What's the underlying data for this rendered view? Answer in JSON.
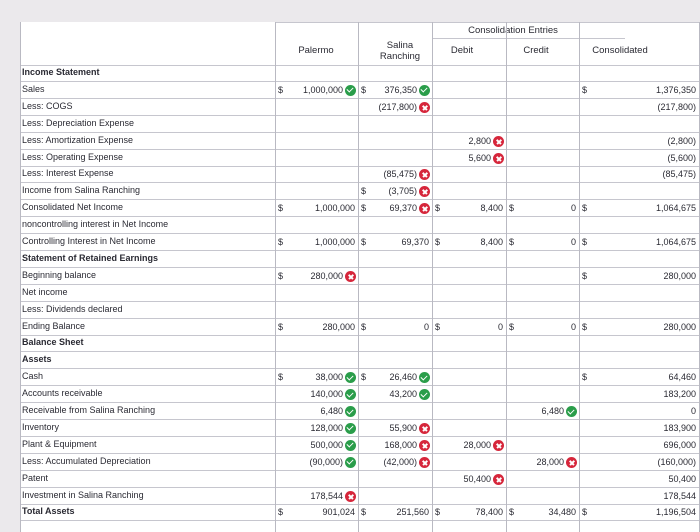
{
  "header": {
    "group": "Consolidation Entries",
    "palermo": "Palermo",
    "salina_line1": "Salina",
    "salina_line2": "Ranching",
    "debit": "Debit",
    "credit": "Credit",
    "consolidated": "Consolidated"
  },
  "rows": [
    {
      "label": "Income Statement",
      "bold": true
    },
    {
      "label": "Sales",
      "cells": {
        "pal": {
          "d": "$",
          "v": "1,000,000",
          "icon": "ok"
        },
        "sal": {
          "d": "$",
          "v": "376,350",
          "icon": "ok"
        },
        "con": {
          "d": "$",
          "v": "1,376,350"
        }
      }
    },
    {
      "label": "Less: COGS",
      "cells": {
        "sal": {
          "v": "(217,800)",
          "icon": "err"
        },
        "con": {
          "v": "(217,800)"
        }
      }
    },
    {
      "label": "Less: Depreciation Expense"
    },
    {
      "label": "Less: Amortization Expense",
      "cells": {
        "deb": {
          "v": "2,800",
          "icon": "err"
        },
        "con": {
          "v": "(2,800)"
        }
      }
    },
    {
      "label": "Less: Operating Expense",
      "cells": {
        "deb": {
          "v": "5,600",
          "icon": "err"
        },
        "con": {
          "v": "(5,600)"
        }
      }
    },
    {
      "label": "Less: Interest Expense",
      "cells": {
        "sal": {
          "v": "(85,475)",
          "icon": "err"
        },
        "con": {
          "v": "(85,475)"
        }
      }
    },
    {
      "label": "Income from Salina Ranching",
      "cells": {
        "sal": {
          "d": "$",
          "v": "(3,705)",
          "icon": "err"
        }
      }
    },
    {
      "label": "Consolidated Net Income",
      "cells": {
        "pal": {
          "d": "$",
          "v": "1,000,000"
        },
        "sal": {
          "d": "$",
          "v": "69,370",
          "icon": "err"
        },
        "deb": {
          "d": "$",
          "v": "8,400"
        },
        "cre": {
          "d": "$",
          "v": "0"
        },
        "con": {
          "d": "$",
          "v": "1,064,675"
        }
      }
    },
    {
      "label": "noncontrolling interest in Net Income"
    },
    {
      "label": "Controlling Interest in Net Income",
      "cells": {
        "pal": {
          "d": "$",
          "v": "1,000,000"
        },
        "sal": {
          "d": "$",
          "v": "69,370"
        },
        "deb": {
          "d": "$",
          "v": "8,400"
        },
        "cre": {
          "d": "$",
          "v": "0"
        },
        "con": {
          "d": "$",
          "v": "1,064,675"
        }
      }
    },
    {
      "label": "Statement of Retained Earnings",
      "bold": true
    },
    {
      "label": "Beginning balance",
      "cells": {
        "pal": {
          "d": "$",
          "v": "280,000",
          "icon": "err"
        },
        "con": {
          "d": "$",
          "v": "280,000"
        }
      }
    },
    {
      "label": "Net income"
    },
    {
      "label": "Less: Dividends declared"
    },
    {
      "label": "Ending Balance",
      "cells": {
        "pal": {
          "d": "$",
          "v": "280,000"
        },
        "sal": {
          "d": "$",
          "v": "0"
        },
        "deb": {
          "d": "$",
          "v": "0"
        },
        "cre": {
          "d": "$",
          "v": "0"
        },
        "con": {
          "d": "$",
          "v": "280,000"
        }
      }
    },
    {
      "label": "Balance Sheet",
      "bold": true
    },
    {
      "label": "Assets",
      "bold": true
    },
    {
      "label": "Cash",
      "cells": {
        "pal": {
          "d": "$",
          "v": "38,000",
          "icon": "ok"
        },
        "sal": {
          "d": "$",
          "v": "26,460",
          "icon": "ok"
        },
        "con": {
          "d": "$",
          "v": "64,460"
        }
      }
    },
    {
      "label": "Accounts receivable",
      "cells": {
        "pal": {
          "v": "140,000",
          "icon": "ok"
        },
        "sal": {
          "v": "43,200",
          "icon": "ok"
        },
        "con": {
          "v": "183,200"
        }
      }
    },
    {
      "label": "Receivable from Salina Ranching",
      "cells": {
        "pal": {
          "v": "6,480",
          "icon": "ok"
        },
        "cre": {
          "v": "6,480",
          "icon": "ok"
        },
        "con": {
          "v": "0"
        }
      }
    },
    {
      "label": "Inventory",
      "cells": {
        "pal": {
          "v": "128,000",
          "icon": "ok"
        },
        "sal": {
          "v": "55,900",
          "icon": "err"
        },
        "con": {
          "v": "183,900"
        }
      }
    },
    {
      "label": "Plant & Equipment",
      "cells": {
        "pal": {
          "v": "500,000",
          "icon": "ok"
        },
        "sal": {
          "v": "168,000",
          "icon": "err"
        },
        "deb": {
          "v": "28,000",
          "icon": "err"
        },
        "con": {
          "v": "696,000"
        }
      }
    },
    {
      "label": "Less: Accumulated Depreciation",
      "cells": {
        "pal": {
          "v": "(90,000)",
          "icon": "ok"
        },
        "sal": {
          "v": "(42,000)",
          "icon": "err"
        },
        "cre": {
          "v": "28,000",
          "icon": "err"
        },
        "con": {
          "v": "(160,000)"
        }
      }
    },
    {
      "label": "Patent",
      "cells": {
        "deb": {
          "v": "50,400",
          "icon": "err"
        },
        "con": {
          "v": "50,400"
        }
      }
    },
    {
      "label": "Investment in Salina Ranching",
      "cells": {
        "pal": {
          "v": "178,544",
          "icon": "err"
        },
        "con": {
          "v": "178,544"
        }
      }
    },
    {
      "label": "Total Assets",
      "bold": true,
      "cells": {
        "pal": {
          "d": "$",
          "v": "901,024"
        },
        "sal": {
          "d": "$",
          "v": "251,560"
        },
        "deb": {
          "d": "$",
          "v": "78,400"
        },
        "cre": {
          "d": "$",
          "v": "34,480"
        },
        "con": {
          "d": "$",
          "v": "1,196,504"
        }
      }
    }
  ]
}
